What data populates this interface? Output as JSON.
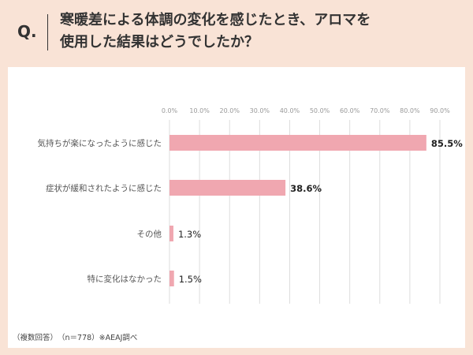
{
  "question": {
    "prefix": "Q.",
    "text": "寒暖差による体調の変化を感じたとき、アロマを\n使用した結果はどうでしたか？"
  },
  "footnote": "（複数回答）　（n＝778）※AEAJ調べ",
  "colors": {
    "background": "#f9e3d6",
    "bar": "#f0a7b0",
    "grid": "#dddddd"
  },
  "chart_data": {
    "type": "bar",
    "orientation": "horizontal",
    "categories": [
      "気持ちが楽になったように感じた",
      "症状が緩和されたように感じた",
      "その他",
      "特に変化はなかった"
    ],
    "values": [
      85.5,
      38.6,
      1.3,
      1.5
    ],
    "value_labels": [
      "85.5%",
      "38.6%",
      "1.3%",
      "1.5%"
    ],
    "xlim": [
      0,
      90
    ],
    "ticks": [
      0,
      10,
      20,
      30,
      40,
      50,
      60,
      70,
      80,
      90
    ],
    "tick_labels": [
      "0.0%",
      "10.0%",
      "20.0%",
      "30.0%",
      "40.0%",
      "50.0%",
      "60.0%",
      "70.0%",
      "80.0%",
      "90.0%"
    ],
    "grid": true,
    "title": "",
    "xlabel": "",
    "ylabel": ""
  }
}
